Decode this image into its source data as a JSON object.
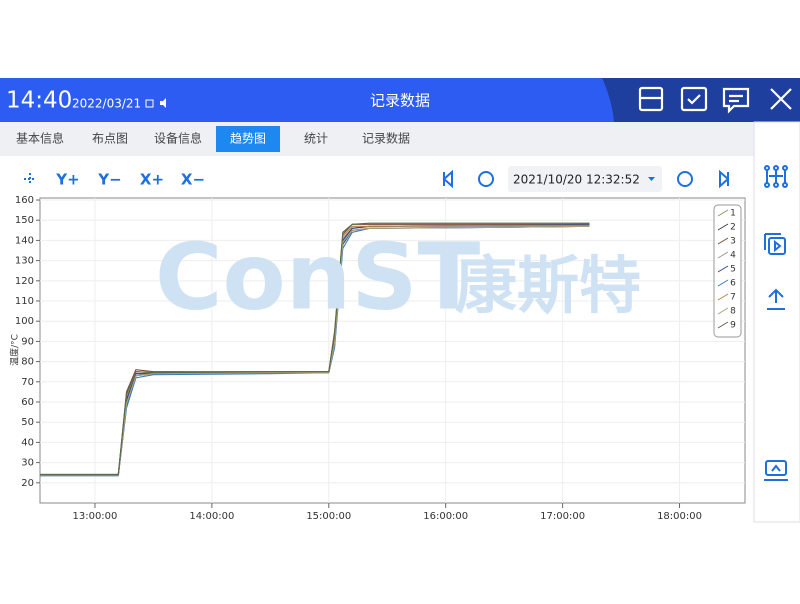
{
  "header": {
    "time": "14:40",
    "date": "2022/03/21",
    "title": "记录数据"
  },
  "tabs": {
    "items": [
      "基本信息",
      "布点图",
      "设备信息",
      "趋势图",
      "统计",
      "记录数据"
    ],
    "active": 3
  },
  "toolbar": {
    "buttons": [
      "Y+",
      "Y−",
      "X+",
      "X−"
    ],
    "datetime": "2021/10/20 12:32:52"
  },
  "watermark": {
    "brand": "ConST",
    "name": "康斯特"
  },
  "chart_data": {
    "type": "line",
    "y_label": "温度/°C",
    "x": [
      12.53,
      13.2,
      13.27,
      13.35,
      13.5,
      14.5,
      15.0,
      15.05,
      15.12,
      15.2,
      15.35,
      16.5,
      17.23
    ],
    "xlim": [
      12.53,
      18.56
    ],
    "ylim": [
      10,
      161
    ],
    "xticks": [
      {
        "value": 13,
        "label": "13:00:00"
      },
      {
        "value": 14,
        "label": "14:00:00"
      },
      {
        "value": 15,
        "label": "15:00:00"
      },
      {
        "value": 16,
        "label": "16:00:00"
      },
      {
        "value": 17,
        "label": "17:00:00"
      },
      {
        "value": 18,
        "label": "18:00:00"
      }
    ],
    "yticks": [
      20,
      30,
      40,
      50,
      60,
      70,
      80,
      90,
      100,
      110,
      120,
      130,
      140,
      150,
      160
    ],
    "grid": true,
    "series": [
      {
        "name": "1",
        "color": "#8a9a5b",
        "values": [
          24,
          24,
          62,
          74,
          74,
          74.5,
          75,
          92,
          140,
          146,
          147,
          147.5,
          148
        ]
      },
      {
        "name": "2",
        "color": "#3a3a5a",
        "values": [
          23.5,
          23.5,
          58,
          73,
          74,
          74.5,
          74.5,
          88,
          138,
          145,
          146,
          146.5,
          147
        ]
      },
      {
        "name": "3",
        "color": "#7a4a3a",
        "values": [
          24,
          24,
          65,
          76,
          75,
          75,
          75,
          95,
          143,
          148,
          148,
          148,
          148
        ]
      },
      {
        "name": "4",
        "color": "#999999",
        "values": [
          23.8,
          23.8,
          60,
          74,
          74,
          74.5,
          75,
          90,
          141,
          146,
          147,
          147,
          147.5
        ]
      },
      {
        "name": "5",
        "color": "#2a4a8a",
        "values": [
          24,
          24,
          61,
          74,
          74,
          74.5,
          75,
          91,
          140,
          146,
          147,
          147.5,
          148
        ]
      },
      {
        "name": "6",
        "color": "#3a7ac0",
        "values": [
          23.6,
          23.6,
          57,
          72,
          73.5,
          74,
          74.5,
          87,
          136,
          144,
          146,
          146.5,
          147
        ]
      },
      {
        "name": "7",
        "color": "#c08040",
        "values": [
          24.2,
          24.2,
          63,
          75,
          74.5,
          75,
          75,
          93,
          142,
          147,
          147,
          147.5,
          147.5
        ]
      },
      {
        "name": "8",
        "color": "#b0a070",
        "values": [
          23.9,
          23.9,
          59,
          73,
          74,
          74.5,
          74.5,
          89,
          139,
          145,
          146,
          146.5,
          147
        ]
      },
      {
        "name": "9",
        "color": "#5a6a4a",
        "values": [
          24.1,
          24.1,
          64,
          75,
          74.5,
          75,
          75,
          94,
          144,
          148,
          148.5,
          148.5,
          148.5
        ]
      }
    ]
  }
}
